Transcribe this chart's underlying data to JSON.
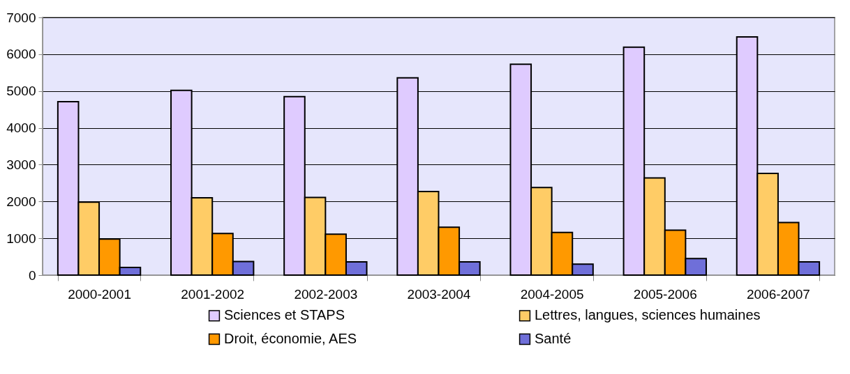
{
  "chart_data": {
    "type": "bar",
    "categories": [
      "2000-2001",
      "2001-2002",
      "2002-2003",
      "2003-2004",
      "2004-2005",
      "2005-2006",
      "2006-2007"
    ],
    "series": [
      {
        "name": "Sciences et STAPS",
        "color": "#dfcbff",
        "values": [
          4710,
          5020,
          4850,
          5360,
          5730,
          6190,
          6470
        ]
      },
      {
        "name": "Lettres, langues, sciences humaines",
        "color": "#ffcc66",
        "values": [
          1980,
          2100,
          2110,
          2270,
          2380,
          2640,
          2760
        ]
      },
      {
        "name": "Droit, économie, AES",
        "color": "#ff9900",
        "values": [
          980,
          1130,
          1110,
          1300,
          1160,
          1220,
          1430
        ]
      },
      {
        "name": "Santé",
        "color": "#6f6fd9",
        "values": [
          210,
          370,
          360,
          360,
          300,
          450,
          360
        ]
      }
    ],
    "ylim": [
      0,
      7000
    ],
    "yticks": [
      0,
      1000,
      2000,
      3000,
      4000,
      5000,
      6000,
      7000
    ],
    "grid": "y",
    "legend": "bottom"
  }
}
